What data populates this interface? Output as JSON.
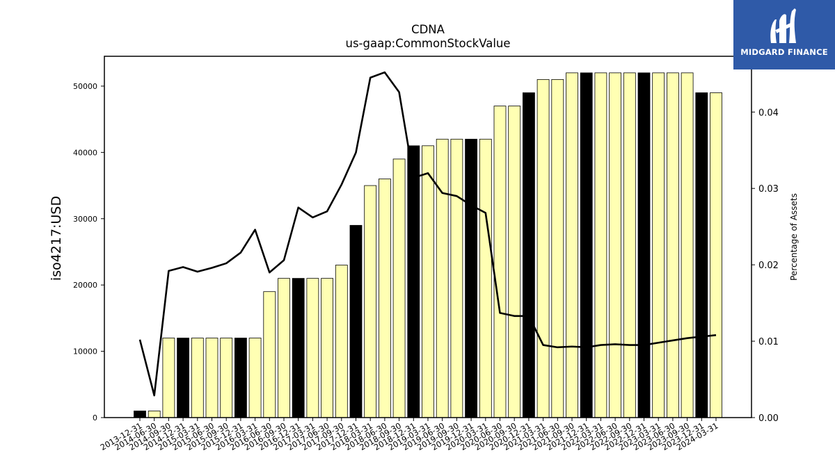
{
  "chart_data": {
    "type": "bar",
    "title": "CDNA",
    "subtitle": "us-gaap:CommonStockValue",
    "ylabel": "iso4217:USD",
    "y2label": "Percentage of Assets",
    "ylim": [
      0,
      54500
    ],
    "y2lim": [
      0,
      0.0473
    ],
    "yticks": [
      "0",
      "10000",
      "20000",
      "30000",
      "40000",
      "50000"
    ],
    "y2ticks": [
      "0.00",
      "0.01",
      "0.02",
      "0.03",
      "0.04"
    ],
    "categories": [
      "2013-12-31",
      "2014-06-30",
      "2014-09-30",
      "2014-12-31",
      "2015-03-31",
      "2015-06-30",
      "2015-09-30",
      "2015-12-31",
      "2016-03-31",
      "2016-06-30",
      "2016-09-30",
      "2016-12-31",
      "2017-03-31",
      "2017-06-30",
      "2017-09-30",
      "2017-12-31",
      "2018-03-31",
      "2018-06-30",
      "2018-09-30",
      "2018-12-31",
      "2019-03-31",
      "2019-06-30",
      "2019-09-30",
      "2019-12-31",
      "2020-03-31",
      "2020-06-30",
      "2020-09-30",
      "2020-12-31",
      "2021-03-31",
      "2021-06-30",
      "2021-09-30",
      "2021-12-31",
      "2022-03-31",
      "2022-06-30",
      "2022-09-30",
      "2022-12-31",
      "2023-03-31",
      "2023-06-30",
      "2023-09-30",
      "2023-12-31",
      "2024-03-31"
    ],
    "series": [
      {
        "values": [
          1000,
          1000,
          12000,
          12000,
          12000,
          12000,
          12000,
          12000,
          12000,
          19000,
          21000,
          21000,
          21000,
          21000,
          23000,
          29000,
          35000,
          36000,
          39000,
          41000,
          41000,
          42000,
          42000,
          42000,
          42000,
          47000,
          47000,
          49000,
          51000,
          51000,
          52000,
          52000,
          52000,
          52000,
          52000,
          52000,
          52000,
          52000,
          52000,
          49000,
          49000
        ]
      },
      {
        "axis": "right",
        "values": [
          0.0102,
          0.0029,
          0.0192,
          0.0197,
          0.0191,
          0.0196,
          0.0202,
          0.0216,
          0.0246,
          0.019,
          0.0206,
          0.0275,
          0.0262,
          0.027,
          0.0305,
          0.0347,
          0.0445,
          0.0452,
          0.0426,
          0.0314,
          0.032,
          0.0294,
          0.029,
          0.0278,
          0.0268,
          0.0137,
          0.0133,
          0.0133,
          0.0095,
          0.0092,
          0.0093,
          0.0092,
          0.0095,
          0.0096,
          0.0095,
          0.0095,
          0.0098,
          0.0101,
          0.0104,
          0.0106,
          0.0108
        ]
      }
    ],
    "highlight_categories": [
      "2013-12-31",
      "2014-12-31",
      "2015-12-31",
      "2016-12-31",
      "2017-12-31",
      "2018-12-31",
      "2019-12-31",
      "2020-12-31",
      "2021-12-31",
      "2022-12-31",
      "2023-12-31"
    ],
    "colors": {
      "bar": "#ffffb3",
      "bar_highlight": "#000000",
      "edge": "#000000",
      "line": "#000000"
    },
    "grid": false
  },
  "logo": {
    "text": "MIDGARD FINANCE",
    "background": "#2f5aa8"
  }
}
